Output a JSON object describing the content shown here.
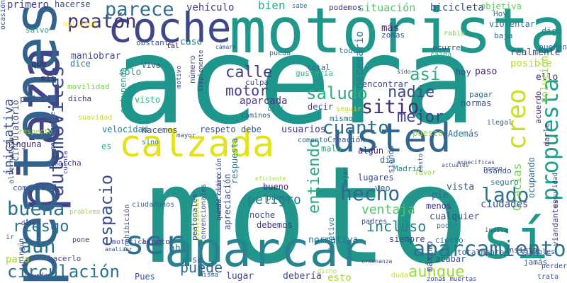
{
  "words": [
    {
      "text": "moto",
      "color": "#23968b",
      "rot": 0
    },
    {
      "text": "acera",
      "color": "#1f968b",
      "rot": 0
    },
    {
      "text": "motorista",
      "color": "#1f978b",
      "rot": 0
    },
    {
      "text": "plaza",
      "color": "#404688",
      "rot": -90
    },
    {
      "text": "peatones",
      "color": "#33628d",
      "rot": -90
    },
    {
      "text": "calzada",
      "color": "#e2e418",
      "rot": 0
    },
    {
      "text": "sí",
      "color": "#1f978b",
      "rot": 0
    },
    {
      "text": "aparcar",
      "color": "#25848e",
      "rot": 0
    },
    {
      "text": "coche",
      "color": "#3f4788",
      "rot": 0
    },
    {
      "text": "usted",
      "color": "#31668e",
      "rot": 0
    },
    {
      "text": "ser",
      "color": "#2d708e",
      "rot": 0
    },
    {
      "text": "aparcamiento",
      "color": "#2b758e",
      "rot": 0
    },
    {
      "text": "automóviles",
      "color": "#3e4c8a",
      "rot": -90
    },
    {
      "text": "peatón",
      "color": "#46327e",
      "rot": 0
    },
    {
      "text": "propuesta",
      "color": "#1f9e89",
      "rot": -90
    },
    {
      "text": "parece",
      "color": "#2e6e8e",
      "rot": 0
    },
    {
      "text": "espacio",
      "color": "#3b518b",
      "rot": -90
    },
    {
      "text": "hecho",
      "color": "#31688e",
      "rot": 0
    },
    {
      "text": "cuanto",
      "color": "#2e6f8e",
      "rot": 0
    },
    {
      "text": "buena",
      "color": "#2c728e",
      "rot": 0
    },
    {
      "text": "riesgo",
      "color": "#2d708e",
      "rot": 0
    },
    {
      "text": "aún",
      "color": "#2c738e",
      "rot": 0
    },
    {
      "text": "circulación",
      "color": "#2c738e",
      "rot": 0
    },
    {
      "text": "creo",
      "color": "#c8e020",
      "rot": -90
    },
    {
      "text": "iniciativa",
      "color": "#3b528b",
      "rot": -90
    },
    {
      "text": "calle",
      "color": "#424086",
      "rot": 0
    },
    {
      "text": "motor",
      "color": "#424186",
      "rot": 0
    },
    {
      "text": "saludo",
      "color": "#26ad81",
      "rot": 0
    },
    {
      "text": "sitio",
      "color": "#472c7a",
      "rot": 0
    },
    {
      "text": "nadie",
      "color": "#3d4e8a",
      "rot": 0
    },
    {
      "text": "mejor",
      "color": "#424086",
      "rot": 0
    },
    {
      "text": "así",
      "color": "#29af7f",
      "rot": 0
    },
    {
      "text": "lado",
      "color": "#2d708e",
      "rot": 0
    },
    {
      "text": "puede",
      "color": "#31688e",
      "rot": 0
    },
    {
      "text": "aunque",
      "color": "#9bd93c",
      "rot": 0
    },
    {
      "text": "entiendo",
      "color": "#26ad81",
      "rot": -90
    },
    {
      "text": "Gracias",
      "color": "#75d054",
      "rot": -90
    },
    {
      "text": "ventaja",
      "color": "#52c569",
      "rot": 0
    },
    {
      "text": "incluso",
      "color": "#297b8e",
      "rot": 0
    },
    {
      "text": "peligro",
      "color": "#287c8e",
      "rot": 0
    },
    {
      "text": "vehículo",
      "color": "#443a83",
      "rot": 0
    },
    {
      "text": "situación",
      "color": "#52c569",
      "rot": 0
    },
    {
      "text": "bicicleta",
      "color": "#3e4a89",
      "rot": 0
    },
    {
      "text": "objetiva",
      "color": "#5ec962",
      "rot": 0
    },
    {
      "text": "primero",
      "color": "#424086",
      "rot": 0
    },
    {
      "text": "hacerse",
      "color": "#3a538b",
      "rot": 0
    },
    {
      "text": "bien",
      "color": "#2ab07f",
      "rot": 0
    },
    {
      "text": "sabe",
      "color": "#2f6b8e",
      "rot": 0
    },
    {
      "text": "más",
      "color": "#481a6c",
      "rot": 0
    },
    {
      "text": "zonas",
      "color": "#3b518b",
      "rot": 0
    },
    {
      "text": "podemos",
      "color": "#453781",
      "rot": 0
    },
    {
      "text": "Hoy",
      "color": "#287d8e",
      "rot": 0
    },
    {
      "text": "violentar",
      "color": "#2a788e",
      "rot": 0
    },
    {
      "text": "digo",
      "color": "#26828e",
      "rot": 0
    },
    {
      "text": "baja",
      "color": "#2e6f8e",
      "rot": 0
    },
    {
      "text": "salvo",
      "color": "#22a785",
      "rot": 0
    },
    {
      "text": "multitud",
      "color": "#fde725",
      "rot": 0
    },
    {
      "text": "maniobrar",
      "color": "#3e4a89",
      "rot": 0
    },
    {
      "text": "obstante",
      "color": "#3a548c",
      "rot": 0
    },
    {
      "text": "tal",
      "color": "#440154",
      "rot": 0
    },
    {
      "text": "caso",
      "color": "#297a8e",
      "rot": 0
    },
    {
      "text": "pueda",
      "color": "#2d718e",
      "rot": 0
    },
    {
      "text": "todos",
      "color": "#27808e",
      "rot": 0
    },
    {
      "text": "rabia",
      "color": "#7ad151",
      "rot": 0
    },
    {
      "text": "ocurre",
      "color": "#39568c",
      "rot": 0
    },
    {
      "text": "caída",
      "color": "#2ab07f",
      "rot": 0
    },
    {
      "text": "realmente",
      "color": "#3f4889",
      "rot": 0
    },
    {
      "text": "pueden",
      "color": "#31668e",
      "rot": 0
    },
    {
      "text": "posible",
      "color": "#b5de2b",
      "rot": 0
    },
    {
      "text": "que",
      "color": "#471063",
      "rot": 0
    },
    {
      "text": "dice",
      "color": "#2d708e",
      "rot": 0
    },
    {
      "text": "mis",
      "color": "#481769",
      "rot": 0
    },
    {
      "text": "Vivo",
      "color": "#3b528b",
      "rot": 0
    },
    {
      "text": "solo",
      "color": "#22a884",
      "rot": 0
    },
    {
      "text": "número",
      "color": "#3b518b",
      "rot": -90
    },
    {
      "text": "total",
      "color": "#33638d",
      "rot": 0
    },
    {
      "text": "gustaría",
      "color": "#29af7f",
      "rot": 0
    },
    {
      "text": "hoy",
      "color": "#3e4989",
      "rot": 0
    },
    {
      "text": "paso",
      "color": "#482475",
      "rot": 0
    },
    {
      "text": "ello",
      "color": "#472d7b",
      "rot": 0
    },
    {
      "text": "movilidad",
      "color": "#7ad151",
      "rot": 0
    },
    {
      "text": "estupenda",
      "color": "#1f9e89",
      "rot": -90
    },
    {
      "text": "podría",
      "color": "#3f4788",
      "rot": 0
    },
    {
      "text": "dicha",
      "color": "#472f7d",
      "rot": 0
    },
    {
      "text": "visto",
      "color": "#29af7f",
      "rot": 0
    },
    {
      "text": "Simplemente",
      "color": "#404688",
      "rot": -90
    },
    {
      "text": "culpa",
      "color": "#3f4889",
      "rot": 0
    },
    {
      "text": "encontrar",
      "color": "#3f4889",
      "rot": 0
    },
    {
      "text": "necesario",
      "color": "#2a788e",
      "rot": -90
    },
    {
      "text": "pagar",
      "color": "#2a768e",
      "rot": 0
    },
    {
      "text": "normas",
      "color": "#3b518b",
      "rot": 0
    },
    {
      "text": "acuerdo",
      "color": "#482979",
      "rot": -90
    },
    {
      "text": "solución",
      "color": "#a2da37",
      "rot": -90
    },
    {
      "text": "suavidad",
      "color": "#bddf26",
      "rot": 0
    },
    {
      "text": "aparcada",
      "color": "#453581",
      "rot": 0
    },
    {
      "text": "casi",
      "color": "#24878e",
      "rot": 0
    },
    {
      "text": "caminos",
      "color": "#3b518b",
      "rot": 0
    },
    {
      "text": "decir",
      "color": "#3e4a89",
      "rot": 0
    },
    {
      "text": "mismo",
      "color": "#2d708e",
      "rot": 0
    },
    {
      "text": "seguir",
      "color": "#c2df23",
      "rot": 0
    },
    {
      "text": "ilegal",
      "color": "#3a548c",
      "rot": 0
    },
    {
      "text": "darle",
      "color": "#3f4889",
      "rot": -90
    },
    {
      "text": "respecto",
      "color": "#a5db36",
      "rot": 0
    },
    {
      "text": "velocidad",
      "color": "#2a788e",
      "rot": 0
    },
    {
      "text": "hacemos",
      "color": "#3c508b",
      "rot": 0
    },
    {
      "text": "respeto",
      "color": "#3d4e8a",
      "rot": 0
    },
    {
      "text": "debe",
      "color": "#3b528b",
      "rot": 0
    },
    {
      "text": "usuarios",
      "color": "#46327e",
      "rot": 0
    },
    {
      "text": "Creación",
      "color": "#3a548c",
      "rot": 0
    },
    {
      "text": "puesto",
      "color": "#a2da37",
      "rot": 0
    },
    {
      "text": "Además",
      "color": "#2e6e8e",
      "rot": 0
    },
    {
      "text": "ninguna",
      "color": "#482878",
      "rot": 0
    },
    {
      "text": "es",
      "color": "#29af7f",
      "rot": 0
    },
    {
      "text": "sino",
      "color": "#24878e",
      "rot": 0
    },
    {
      "text": "comento",
      "color": "#375a8c",
      "rot": 0
    },
    {
      "text": "mala",
      "color": "#22a785",
      "rot": 0
    },
    {
      "text": "algún",
      "color": "#482576",
      "rot": 0
    },
    {
      "text": "día",
      "color": "#2c718e",
      "rot": 0
    },
    {
      "text": "Madrid",
      "color": "#26828e",
      "rot": 0
    },
    {
      "text": "favor",
      "color": "#9bd93c",
      "rot": 0
    },
    {
      "text": "específicas",
      "color": "#3e4a89",
      "rot": 0
    },
    {
      "text": "usando",
      "color": "#375b8d",
      "rot": 0
    },
    {
      "text": "seguro",
      "color": "#2e6f8e",
      "rot": 0
    },
    {
      "text": "ocupando",
      "color": "#2c718e",
      "rot": -90
    },
    {
      "text": "viandantes",
      "color": "#472c7a",
      "rot": -90
    },
    {
      "text": "alternativa",
      "color": "#3b528b",
      "rot": -90
    },
    {
      "text": "circulatorio",
      "color": "#3e4a89",
      "rot": -90
    },
    {
      "text": "marcha",
      "color": "#414487",
      "rot": 0
    },
    {
      "text": "ciudadanos",
      "color": "#32658e",
      "rot": 0
    },
    {
      "text": "respuesta",
      "color": "#2a778e",
      "rot": -90
    },
    {
      "text": "siendo",
      "color": "#365c8d",
      "rot": -90
    },
    {
      "text": "lugares",
      "color": "#3f4788",
      "rot": 0
    },
    {
      "text": "veo",
      "color": "#2f6c8e",
      "rot": 0
    },
    {
      "text": "bueno",
      "color": "#472a7a",
      "rot": 0
    },
    {
      "text": "punto",
      "color": "#2c718e",
      "rot": 0
    },
    {
      "text": "noche",
      "color": "#3b518b",
      "rot": 0
    },
    {
      "text": "debemos",
      "color": "#453882",
      "rot": 0
    },
    {
      "text": "vista",
      "color": "#38588c",
      "rot": 0
    },
    {
      "text": "pie",
      "color": "#2e6f8e",
      "rot": 0
    },
    {
      "text": "menos",
      "color": "#46337f",
      "rot": 0
    },
    {
      "text": "ciudades",
      "color": "#3b518b",
      "rot": 0
    },
    {
      "text": "cualquier",
      "color": "#3e4c8a",
      "rot": 0
    },
    {
      "text": "poder",
      "color": "#27808e",
      "rot": 0
    },
    {
      "text": "padres",
      "color": "#3f4788",
      "rot": 0
    },
    {
      "text": "comenta",
      "color": "#3e4c8a",
      "rot": 0
    },
    {
      "text": "problema",
      "color": "#a5db36",
      "rot": 0
    },
    {
      "text": "deben",
      "color": "#3e4a89",
      "rot": 0
    },
    {
      "text": "motocicleta",
      "color": "#3b518b",
      "rot": 0
    },
    {
      "text": "Prohibición",
      "color": "#3a548c",
      "rot": -90
    },
    {
      "text": "suficientes",
      "color": "#a5db36",
      "rot": -90
    },
    {
      "text": "convencionales",
      "color": "#3e4c8a",
      "rot": -90
    },
    {
      "text": "peatonales",
      "color": "#3f4788",
      "rot": -90
    },
    {
      "text": "queda claro",
      "color": "#424186",
      "rot": -90
    },
    {
      "text": "contradicción",
      "color": "#3d4e8a",
      "rot": -90
    },
    {
      "text": "objetivo",
      "color": "#2b748e",
      "rot": -90
    },
    {
      "text": "apreciación",
      "color": "#3e4c8a",
      "rot": -90
    },
    {
      "text": "ir",
      "color": "#2e6e8e",
      "rot": 0
    },
    {
      "text": "pone",
      "color": "#424086",
      "rot": 0
    },
    {
      "text": "analizar",
      "color": "#3b528b",
      "rot": 0
    },
    {
      "text": "asunto",
      "color": "#3e4989",
      "rot": 0
    },
    {
      "text": "ahí",
      "color": "#2d708e",
      "rot": 0
    },
    {
      "text": "normativa",
      "color": "#2c718e",
      "rot": 0
    },
    {
      "text": "siempre",
      "color": "#3f4889",
      "rot": 0
    },
    {
      "text": "cierto",
      "color": "#2c728e",
      "rot": 0
    },
    {
      "text": "acabar",
      "color": "#3b528b",
      "rot": 0
    },
    {
      "text": "totalmente",
      "color": "#3b528b",
      "rot": 0
    },
    {
      "text": "insisto",
      "color": "#3f4889",
      "rot": 0
    },
    {
      "text": "visibles",
      "color": "#3e4c8a",
      "rot": 0
    },
    {
      "text": "jamás",
      "color": "#3b528b",
      "rot": 0
    },
    {
      "text": "indica",
      "color": "#375a8c",
      "rot": 0
    },
    {
      "text": "perder",
      "color": "#3b528b",
      "rot": 0
    },
    {
      "text": "seguridad",
      "color": "#3b528b",
      "rot": -90
    },
    {
      "text": "para",
      "color": "#a5db36",
      "rot": 0
    },
    {
      "text": "hacerlo",
      "color": "#3e4c8a",
      "rot": 0
    },
    {
      "text": "sé",
      "color": "#3b528b",
      "rot": 0
    },
    {
      "text": "Pues",
      "color": "#3b518b",
      "rot": 0
    },
    {
      "text": "lugar",
      "color": "#3e4a89",
      "rot": 0
    },
    {
      "text": "debería",
      "color": "#3f4788",
      "rot": 0
    },
    {
      "text": "dicho",
      "color": "#b5de2b",
      "rot": 0
    },
    {
      "text": "esto",
      "color": "#a2da37",
      "rot": 0
    },
    {
      "text": "ordenanza",
      "color": "#3e4c8a",
      "rot": 0
    },
    {
      "text": "duda",
      "color": "#bddf26",
      "rot": 0
    },
    {
      "text": "máximo",
      "color": "#3f4889",
      "rot": -90
    },
    {
      "text": "zonas muertas",
      "color": "#3f4788",
      "rot": 0
    },
    {
      "text": "trata",
      "color": "#3b528b",
      "rot": 0
    },
    {
      "text": "misma",
      "color": "#3b528b",
      "rot": 0
    },
    {
      "text": "ningún",
      "color": "#3e4a89",
      "rot": -90
    },
    {
      "text": "puedo",
      "color": "#3b528b",
      "rot": 0
    },
    {
      "text": "sido",
      "color": "#3e4c8a",
      "rot": 0
    },
    {
      "text": "mayor",
      "color": "#3b518b",
      "rot": 0
    },
    {
      "text": "motivo",
      "color": "#3e4a89",
      "rot": -90
    },
    {
      "text": "cámara",
      "color": "#3b528b",
      "rot": 0
    },
    {
      "text": "cuenta",
      "color": "#3e4c8a",
      "rot": -90
    },
    {
      "text": "compromete",
      "color": "#3b528b",
      "rot": -90
    },
    {
      "text": "eficiente",
      "color": "#a2da37",
      "rot": 0
    },
    {
      "text": "actuales",
      "color": "#3b528b",
      "rot": 0
    },
    {
      "text": "ponen",
      "color": "#3e4c8a",
      "rot": 0
    },
    {
      "text": "costo",
      "color": "#3b528b",
      "rot": -90
    },
    {
      "text": "dejar",
      "color": "#3e4c8a",
      "rot": -90
    },
    {
      "text": "ocasión",
      "color": "#3b528b",
      "rot": -90
    }
  ]
}
